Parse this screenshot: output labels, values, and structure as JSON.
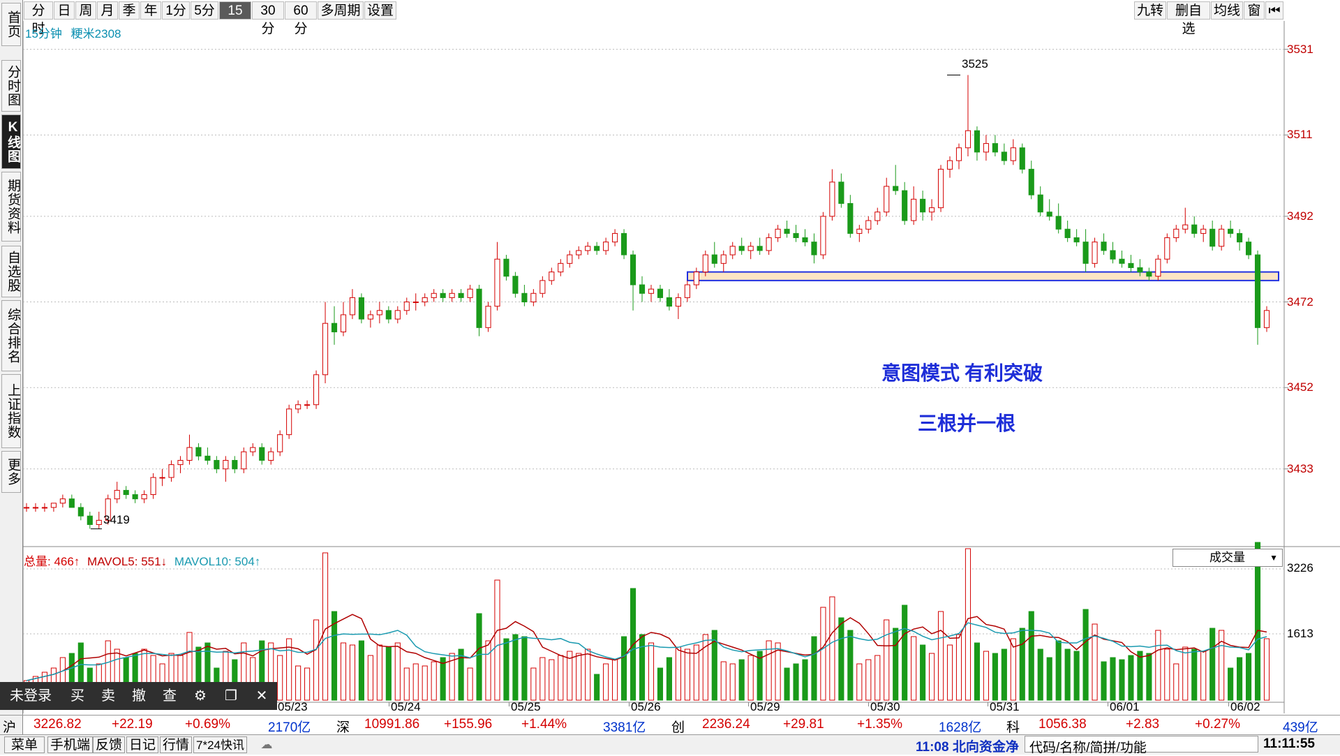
{
  "toolbar": {
    "periods": [
      "分时",
      "日",
      "周",
      "月",
      "季",
      "年",
      "1分",
      "5分",
      "15分",
      "30分",
      "60分",
      "多周期",
      "设置"
    ],
    "active": "15分",
    "right_buttons": [
      "九转",
      "删自选",
      "均线",
      "窗"
    ]
  },
  "left_tabs": [
    "首页",
    "分时图",
    "K线图",
    "期货资料",
    "自选股",
    "综合排名",
    "上证指数",
    "更多"
  ],
  "left_active": "K线图",
  "chart_header": {
    "period": "15分钟",
    "symbol": "粳米2308"
  },
  "annotations": {
    "pattern_text": "意图模式  有利突破",
    "pattern_sub": "三根并一根",
    "high_label": "3525",
    "low_label": "3419"
  },
  "price_axis": [
    "3531",
    "3511",
    "3492",
    "3472",
    "3452",
    "3433"
  ],
  "volume_axis": [
    "3226",
    "1613"
  ],
  "volume_header": {
    "total": "总量: 466↑",
    "mavol5": "MAVOL5: 551↓",
    "mavol10": "MAVOL10: 504↑",
    "selector": "成交量"
  },
  "date_labels": [
    "05/23",
    "05/24",
    "05/25",
    "05/26",
    "05/29",
    "05/30",
    "05/31",
    "06/01",
    "06/02"
  ],
  "float_toolbar": [
    "未登录",
    "买",
    "卖",
    "撤",
    "查",
    "⚙",
    "❐",
    "✕"
  ],
  "index_bar": {
    "sh": {
      "name": "沪",
      "price": "3226.82",
      "chg": "+22.19",
      "pct": "+0.69%",
      "amt": "2170亿"
    },
    "sz": {
      "name": "深",
      "price": "10991.86",
      "chg": "+155.96",
      "pct": "+1.44%",
      "amt": "3381亿"
    },
    "cy": {
      "name": "创",
      "price": "2236.24",
      "chg": "+29.81",
      "pct": "+1.35%",
      "amt": "1628亿"
    },
    "kc": {
      "name": "科",
      "price": "1056.38",
      "chg": "+2.83",
      "pct": "+0.27%",
      "amt": "439亿"
    }
  },
  "bottom_bar": {
    "buttons": [
      "菜单",
      "手机端",
      "反馈",
      "日记",
      "行情",
      "7*24快讯"
    ],
    "ticker": "11:08 北向资金净",
    "search_placeholder": "代码/名称/简拼/功能",
    "time": "11:11:55"
  },
  "chart_data": {
    "type": "candlestick",
    "symbol": "粳米2308",
    "period": "15分钟",
    "y_range": [
      3416,
      3536
    ],
    "ticks": [
      3531,
      3511,
      3492,
      3472,
      3452,
      3433
    ],
    "high": 3525,
    "low": 3419,
    "support_zone": [
      3479,
      3477
    ],
    "candles_ohlc": [
      [
        3424,
        3425,
        3423,
        3424
      ],
      [
        3424,
        3425,
        3423,
        3424
      ],
      [
        3424,
        3425,
        3423,
        3424
      ],
      [
        3424,
        3425,
        3423,
        3425
      ],
      [
        3425,
        3427,
        3424,
        3426
      ],
      [
        3426,
        3427,
        3424,
        3424
      ],
      [
        3424,
        3425,
        3421,
        3422
      ],
      [
        3422,
        3423,
        3419,
        3420
      ],
      [
        3420,
        3423,
        3419,
        3421
      ],
      [
        3421,
        3427,
        3420,
        3426
      ],
      [
        3426,
        3430,
        3425,
        3428
      ],
      [
        3428,
        3429,
        3426,
        3427
      ],
      [
        3427,
        3428,
        3425,
        3426
      ],
      [
        3426,
        3428,
        3425,
        3427
      ],
      [
        3427,
        3432,
        3426,
        3431
      ],
      [
        3431,
        3433,
        3429,
        3431
      ],
      [
        3431,
        3435,
        3430,
        3434
      ],
      [
        3434,
        3436,
        3432,
        3435
      ],
      [
        3435,
        3441,
        3434,
        3438
      ],
      [
        3438,
        3439,
        3435,
        3436
      ],
      [
        3436,
        3438,
        3434,
        3435
      ],
      [
        3435,
        3436,
        3432,
        3433
      ],
      [
        3433,
        3436,
        3430,
        3435
      ],
      [
        3435,
        3436,
        3432,
        3433
      ],
      [
        3433,
        3438,
        3432,
        3437
      ],
      [
        3437,
        3439,
        3436,
        3438
      ],
      [
        3438,
        3439,
        3434,
        3435
      ],
      [
        3435,
        3438,
        3434,
        3437
      ],
      [
        3437,
        3442,
        3436,
        3441
      ],
      [
        3441,
        3448,
        3440,
        3447
      ],
      [
        3447,
        3449,
        3446,
        3448
      ],
      [
        3448,
        3449,
        3447,
        3448
      ],
      [
        3448,
        3456,
        3447,
        3455
      ],
      [
        3455,
        3472,
        3453,
        3467
      ],
      [
        3467,
        3471,
        3462,
        3465
      ],
      [
        3465,
        3472,
        3464,
        3469
      ],
      [
        3469,
        3475,
        3468,
        3473
      ],
      [
        3473,
        3474,
        3467,
        3468
      ],
      [
        3468,
        3470,
        3466,
        3469
      ],
      [
        3469,
        3472,
        3467,
        3470
      ],
      [
        3470,
        3471,
        3467,
        3468
      ],
      [
        3468,
        3471,
        3467,
        3470
      ],
      [
        3470,
        3473,
        3469,
        3472
      ],
      [
        3472,
        3474,
        3470,
        3472
      ],
      [
        3472,
        3474,
        3471,
        3473
      ],
      [
        3473,
        3475,
        3472,
        3474
      ],
      [
        3474,
        3475,
        3472,
        3473
      ],
      [
        3473,
        3475,
        3472,
        3474
      ],
      [
        3474,
        3475,
        3472,
        3473
      ],
      [
        3473,
        3476,
        3472,
        3475
      ],
      [
        3475,
        3476,
        3464,
        3466
      ],
      [
        3466,
        3472,
        3465,
        3471
      ],
      [
        3471,
        3486,
        3470,
        3482
      ],
      [
        3482,
        3483,
        3477,
        3478
      ],
      [
        3478,
        3479,
        3473,
        3474
      ],
      [
        3474,
        3476,
        3471,
        3472
      ],
      [
        3472,
        3475,
        3471,
        3474
      ],
      [
        3474,
        3478,
        3473,
        3477
      ],
      [
        3477,
        3480,
        3476,
        3479
      ],
      [
        3479,
        3482,
        3478,
        3481
      ],
      [
        3481,
        3484,
        3480,
        3483
      ],
      [
        3483,
        3485,
        3482,
        3484
      ],
      [
        3484,
        3486,
        3483,
        3485
      ],
      [
        3485,
        3486,
        3483,
        3484
      ],
      [
        3484,
        3487,
        3483,
        3486
      ],
      [
        3486,
        3489,
        3485,
        3488
      ],
      [
        3488,
        3489,
        3482,
        3483
      ],
      [
        3483,
        3484,
        3470,
        3476
      ],
      [
        3476,
        3478,
        3472,
        3474
      ],
      [
        3474,
        3476,
        3472,
        3475
      ],
      [
        3475,
        3476,
        3472,
        3473
      ],
      [
        3473,
        3475,
        3470,
        3471
      ],
      [
        3471,
        3474,
        3468,
        3473
      ],
      [
        3473,
        3477,
        3472,
        3476
      ],
      [
        3476,
        3480,
        3475,
        3479
      ],
      [
        3479,
        3484,
        3478,
        3483
      ],
      [
        3483,
        3486,
        3480,
        3481
      ],
      [
        3481,
        3484,
        3479,
        3483
      ],
      [
        3483,
        3486,
        3482,
        3485
      ],
      [
        3485,
        3487,
        3483,
        3484
      ],
      [
        3484,
        3486,
        3482,
        3485
      ],
      [
        3485,
        3487,
        3483,
        3484
      ],
      [
        3484,
        3488,
        3483,
        3487
      ],
      [
        3487,
        3490,
        3486,
        3489
      ],
      [
        3489,
        3491,
        3487,
        3488
      ],
      [
        3488,
        3490,
        3486,
        3487
      ],
      [
        3487,
        3489,
        3485,
        3486
      ],
      [
        3486,
        3488,
        3481,
        3483
      ],
      [
        3483,
        3493,
        3482,
        3492
      ],
      [
        3492,
        3503,
        3491,
        3500
      ],
      [
        3500,
        3502,
        3494,
        3495
      ],
      [
        3495,
        3497,
        3487,
        3488
      ],
      [
        3488,
        3490,
        3486,
        3489
      ],
      [
        3489,
        3492,
        3488,
        3491
      ],
      [
        3491,
        3494,
        3490,
        3493
      ],
      [
        3493,
        3501,
        3492,
        3499
      ],
      [
        3499,
        3504,
        3497,
        3498
      ],
      [
        3498,
        3500,
        3490,
        3491
      ],
      [
        3491,
        3499,
        3490,
        3496
      ],
      [
        3496,
        3498,
        3491,
        3493
      ],
      [
        3493,
        3496,
        3491,
        3494
      ],
      [
        3494,
        3504,
        3493,
        3503
      ],
      [
        3503,
        3506,
        3501,
        3505
      ],
      [
        3505,
        3509,
        3503,
        3508
      ],
      [
        3508,
        3525,
        3506,
        3512
      ],
      [
        3512,
        3513,
        3505,
        3507
      ],
      [
        3507,
        3511,
        3505,
        3509
      ],
      [
        3509,
        3511,
        3506,
        3507
      ],
      [
        3507,
        3509,
        3504,
        3505
      ],
      [
        3505,
        3510,
        3504,
        3508
      ],
      [
        3508,
        3509,
        3502,
        3503
      ],
      [
        3503,
        3505,
        3496,
        3497
      ],
      [
        3497,
        3499,
        3492,
        3493
      ],
      [
        3493,
        3496,
        3491,
        3492
      ],
      [
        3492,
        3495,
        3488,
        3489
      ],
      [
        3489,
        3491,
        3486,
        3487
      ],
      [
        3487,
        3489,
        3485,
        3486
      ],
      [
        3486,
        3489,
        3479,
        3481
      ],
      [
        3481,
        3487,
        3480,
        3486
      ],
      [
        3486,
        3488,
        3483,
        3484
      ],
      [
        3484,
        3486,
        3481,
        3482
      ],
      [
        3482,
        3484,
        3480,
        3481
      ],
      [
        3481,
        3483,
        3479,
        3480
      ],
      [
        3480,
        3482,
        3478,
        3479
      ],
      [
        3479,
        3480,
        3477,
        3478
      ],
      [
        3478,
        3483,
        3477,
        3482
      ],
      [
        3482,
        3488,
        3481,
        3487
      ],
      [
        3487,
        3490,
        3486,
        3489
      ],
      [
        3489,
        3494,
        3488,
        3490
      ],
      [
        3490,
        3492,
        3487,
        3488
      ],
      [
        3488,
        3490,
        3486,
        3489
      ],
      [
        3489,
        3491,
        3484,
        3485
      ],
      [
        3485,
        3490,
        3484,
        3489
      ],
      [
        3489,
        3491,
        3487,
        3488
      ],
      [
        3488,
        3489,
        3484,
        3486
      ],
      [
        3486,
        3487,
        3482,
        3483
      ],
      [
        3483,
        3484,
        3462,
        3466
      ],
      [
        3466,
        3471,
        3465,
        3470
      ]
    ],
    "volume_axis": [
      3226,
      1613
    ],
    "mavol5": 551,
    "mavol10": 504,
    "total_volume": 466
  }
}
